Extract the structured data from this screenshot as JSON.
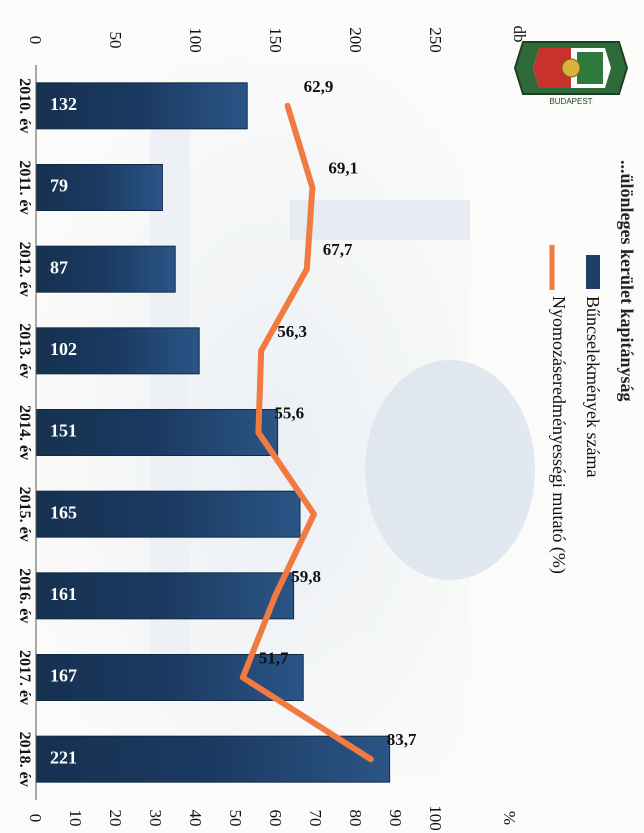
{
  "chart_data": {
    "type": "bar",
    "title": "...ülönleges kerület kapitányság",
    "categories": [
      "2010. év",
      "2011. év",
      "2012. év",
      "2013. év",
      "2014. év",
      "2015. év",
      "2016. év",
      "2017. év",
      "2018. év"
    ],
    "series": [
      {
        "name": "Bűncselekmények száma",
        "type": "bar",
        "axis": "left",
        "values": [
          132,
          79,
          87,
          102,
          151,
          165,
          161,
          167,
          221
        ],
        "labels": [
          "132",
          "79",
          "87",
          "102",
          "151",
          "165",
          "161",
          "167",
          "221"
        ],
        "color": "#1f3f66"
      },
      {
        "name": "Nyomozáseredményességi mutató (%)",
        "type": "line",
        "axis": "right",
        "values": [
          62.9,
          69.1,
          67.7,
          56.3,
          55.6,
          69.5,
          59.8,
          51.7,
          83.7
        ],
        "labels": [
          "62,9",
          "69,1",
          "67,7",
          "56,3",
          "55,6",
          "",
          "59,8",
          "51,7",
          "83,7"
        ],
        "color": "#f07a40"
      }
    ],
    "y_left": {
      "unit": "db",
      "ylim": [
        0,
        250
      ],
      "ticks": [
        "0",
        "50",
        "100",
        "150",
        "200",
        "250"
      ]
    },
    "y_right": {
      "unit": "%",
      "ylim": [
        0,
        100
      ],
      "ticks": [
        "0",
        "10",
        "20",
        "30",
        "40",
        "50",
        "60",
        "70",
        "80",
        "90",
        "100"
      ]
    },
    "orientation": "rotated 90° clockwise",
    "legend_position": "top",
    "grid": false
  },
  "logo": {
    "name": "police-crest-logo",
    "text": "BUDAPEST"
  }
}
